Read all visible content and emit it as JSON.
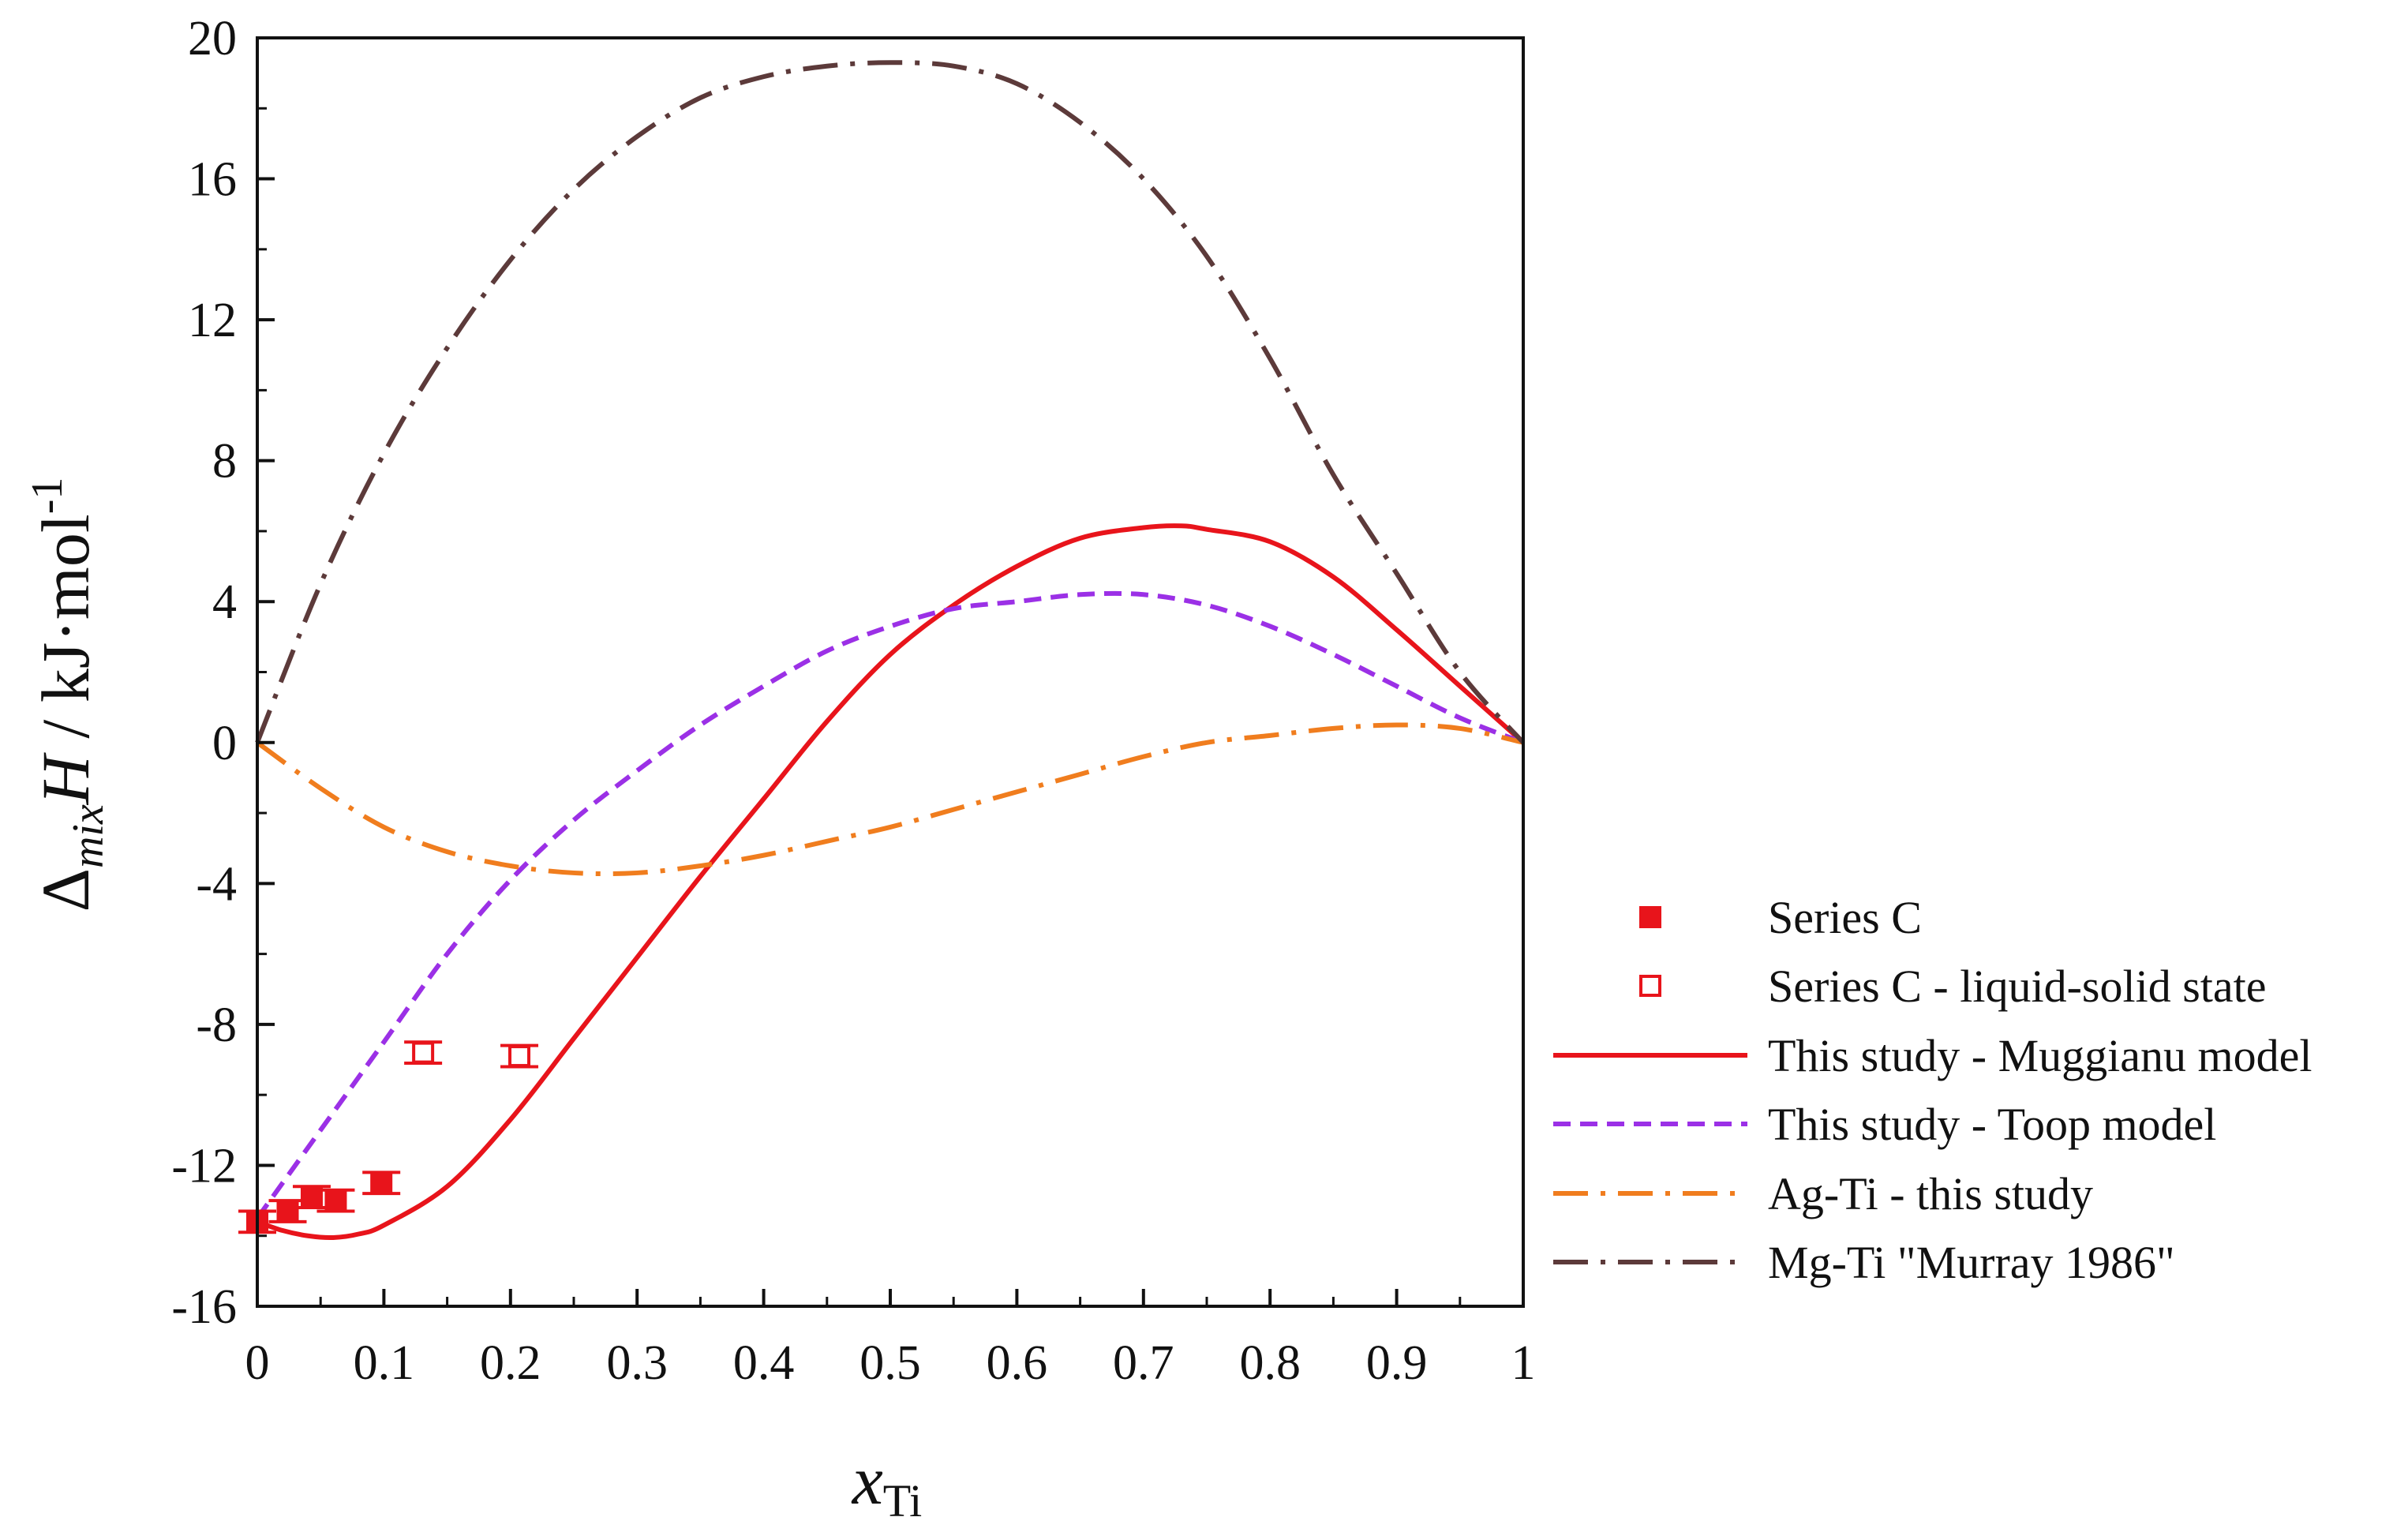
{
  "chart_data": {
    "type": "line",
    "title": "",
    "xlabel": {
      "main": "x",
      "sub": "Ti"
    },
    "ylabel": {
      "delta": "Δ",
      "sub": "mix",
      "main": "H",
      "unit": " / kJ·mol",
      "sup": "-1"
    },
    "xlim": [
      0,
      1
    ],
    "ylim": [
      -16,
      20
    ],
    "xticks": [
      0,
      0.1,
      0.2,
      0.3,
      0.4,
      0.5,
      0.6,
      0.7,
      0.8,
      0.9,
      1
    ],
    "xtick_labels": [
      "0",
      "0.1",
      "0.2",
      "0.3",
      "0.4",
      "0.5",
      "0.6",
      "0.7",
      "0.8",
      "0.9",
      "1"
    ],
    "yticks": [
      -16,
      -12,
      -8,
      -4,
      0,
      4,
      8,
      12,
      16,
      20
    ],
    "ytick_labels": [
      "-16",
      "-12",
      "-8",
      "-4",
      "0",
      "4",
      "8",
      "12",
      "16",
      "20"
    ],
    "grid": false,
    "legend_position": "right",
    "series": [
      {
        "name": "Series C",
        "kind": "scatter",
        "marker": "filled-square",
        "color": "#e8141b",
        "points": [
          {
            "x": 0.0,
            "y": -13.6,
            "err": 0.3
          },
          {
            "x": 0.024,
            "y": -13.3,
            "err": 0.3
          },
          {
            "x": 0.043,
            "y": -12.9,
            "err": 0.3
          },
          {
            "x": 0.062,
            "y": -13.0,
            "err": 0.3
          },
          {
            "x": 0.098,
            "y": -12.5,
            "err": 0.3
          }
        ]
      },
      {
        "name": "Series C - liquid-solid state",
        "kind": "scatter",
        "marker": "open-square",
        "color": "#e8141b",
        "points": [
          {
            "x": 0.131,
            "y": -8.8,
            "err": 0.3
          },
          {
            "x": 0.207,
            "y": -8.9,
            "err": 0.3
          }
        ]
      },
      {
        "name": "This study - Muggianu model",
        "kind": "line",
        "dash": "solid",
        "color": "#e8141b",
        "x": [
          0,
          0.02,
          0.04,
          0.06,
          0.08,
          0.1,
          0.15,
          0.2,
          0.25,
          0.3,
          0.35,
          0.4,
          0.45,
          0.5,
          0.55,
          0.6,
          0.65,
          0.7,
          0.73,
          0.75,
          0.8,
          0.85,
          0.9,
          0.95,
          1.0
        ],
        "y": [
          -13.6,
          -13.85,
          -14.0,
          -14.05,
          -13.95,
          -13.7,
          -12.6,
          -10.7,
          -8.4,
          -6.1,
          -3.8,
          -1.6,
          0.6,
          2.5,
          3.9,
          5.0,
          5.8,
          6.1,
          6.15,
          6.05,
          5.7,
          4.7,
          3.2,
          1.6,
          0.0
        ]
      },
      {
        "name": "This study - Toop model",
        "kind": "line",
        "dash": "dashed",
        "color": "#9b30e6",
        "x": [
          0,
          0.05,
          0.1,
          0.15,
          0.2,
          0.25,
          0.3,
          0.35,
          0.4,
          0.45,
          0.5,
          0.55,
          0.6,
          0.65,
          0.7,
          0.75,
          0.8,
          0.85,
          0.9,
          0.95,
          1.0
        ],
        "y": [
          -13.5,
          -11.0,
          -8.5,
          -6.0,
          -3.9,
          -2.2,
          -0.8,
          0.5,
          1.6,
          2.6,
          3.3,
          3.8,
          4.0,
          4.2,
          4.2,
          3.9,
          3.3,
          2.5,
          1.6,
          0.7,
          0.0
        ]
      },
      {
        "name": "Ag-Ti - this study",
        "kind": "line",
        "dash": "dash-dot",
        "color": "#f07d1e",
        "x": [
          0,
          0.05,
          0.1,
          0.15,
          0.2,
          0.25,
          0.3,
          0.35,
          0.4,
          0.45,
          0.5,
          0.55,
          0.6,
          0.65,
          0.7,
          0.75,
          0.8,
          0.85,
          0.9,
          0.95,
          1.0
        ],
        "y": [
          0.0,
          -1.3,
          -2.4,
          -3.1,
          -3.5,
          -3.7,
          -3.7,
          -3.5,
          -3.2,
          -2.8,
          -2.4,
          -1.9,
          -1.4,
          -0.9,
          -0.4,
          0.0,
          0.2,
          0.4,
          0.5,
          0.4,
          0.0
        ]
      },
      {
        "name": "Mg-Ti \"Murray 1986\"",
        "kind": "line",
        "dash": "dash-dot",
        "color": "#5c3a3a",
        "x": [
          0,
          0.05,
          0.1,
          0.15,
          0.2,
          0.25,
          0.3,
          0.35,
          0.4,
          0.45,
          0.5,
          0.55,
          0.6,
          0.65,
          0.7,
          0.75,
          0.8,
          0.85,
          0.9,
          0.95,
          1.0
        ],
        "y": [
          0.0,
          4.5,
          8.2,
          11.2,
          13.7,
          15.7,
          17.2,
          18.3,
          18.9,
          19.2,
          19.3,
          19.2,
          18.7,
          17.6,
          16.0,
          13.8,
          10.9,
          7.6,
          4.8,
          2.0,
          0.0
        ]
      }
    ]
  }
}
